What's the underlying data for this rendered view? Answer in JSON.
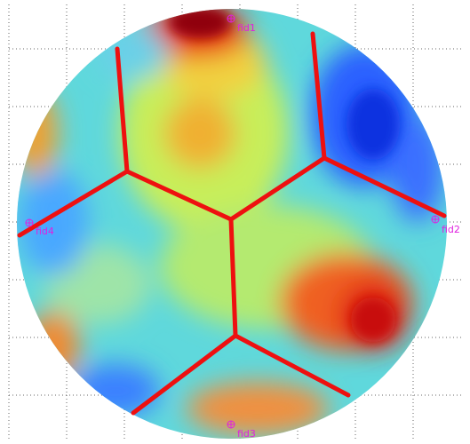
{
  "fiducials": [
    {
      "label": "fid1"
    },
    {
      "label": "fid2"
    },
    {
      "label": "fid3"
    },
    {
      "label": "fid4"
    }
  ]
}
